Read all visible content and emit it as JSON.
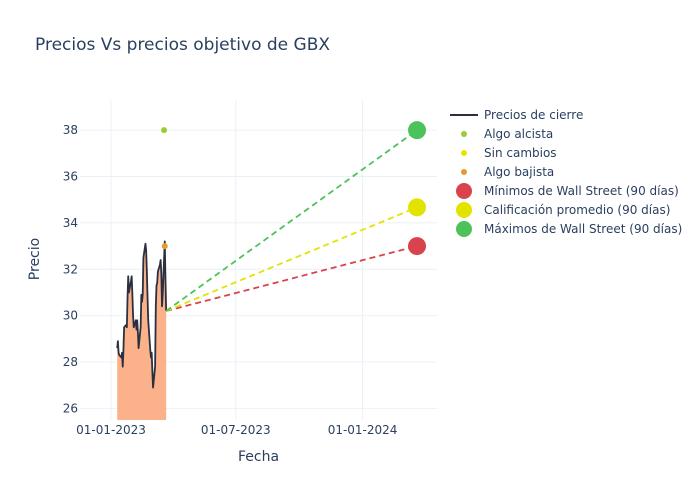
{
  "chart_data": {
    "type": "line",
    "title": "Precios Vs precios objetivo de GBX",
    "xlabel": "Fecha",
    "ylabel": "Precio",
    "xlim": [
      "2022-11-17",
      "2024-04-18"
    ],
    "ylim": [
      25.5,
      39.3
    ],
    "x_ticks": [
      {
        "date": "2023-01-01",
        "label": "01-01-2023"
      },
      {
        "date": "2023-07-01",
        "label": "01-07-2023"
      },
      {
        "date": "2024-01-01",
        "label": "01-01-2024"
      }
    ],
    "y_ticks": [
      26,
      28,
      30,
      32,
      34,
      36,
      38
    ],
    "grid": true,
    "legend_position": "right",
    "close_prices": {
      "name": "Precios de cierre",
      "color": "#2a3040",
      "fill_color": "#fbb28a",
      "points": [
        [
          "2023-01-10",
          28.6
        ],
        [
          "2023-01-11",
          28.9
        ],
        [
          "2023-01-12",
          28.4
        ],
        [
          "2023-01-13",
          28.3
        ],
        [
          "2023-01-16",
          28.2
        ],
        [
          "2023-01-17",
          28.4
        ],
        [
          "2023-01-18",
          27.8
        ],
        [
          "2023-01-19",
          28.5
        ],
        [
          "2023-01-20",
          29.5
        ],
        [
          "2023-01-23",
          29.6
        ],
        [
          "2023-01-24",
          29.5
        ],
        [
          "2023-01-25",
          30.8
        ],
        [
          "2023-01-26",
          31.7
        ],
        [
          "2023-01-27",
          31.0
        ],
        [
          "2023-01-30",
          31.5
        ],
        [
          "2023-01-31",
          31.7
        ],
        [
          "2023-02-01",
          30.9
        ],
        [
          "2023-02-02",
          30.0
        ],
        [
          "2023-02-03",
          29.5
        ],
        [
          "2023-02-06",
          29.8
        ],
        [
          "2023-02-07",
          29.4
        ],
        [
          "2023-02-08",
          29.8
        ],
        [
          "2023-02-09",
          29.3
        ],
        [
          "2023-02-10",
          28.6
        ],
        [
          "2023-02-13",
          29.5
        ],
        [
          "2023-02-14",
          30.9
        ],
        [
          "2023-02-15",
          30.6
        ],
        [
          "2023-02-16",
          30.9
        ],
        [
          "2023-02-17",
          32.5
        ],
        [
          "2023-02-20",
          33.1
        ],
        [
          "2023-02-21",
          32.8
        ],
        [
          "2023-02-22",
          31.9
        ],
        [
          "2023-02-23",
          30.8
        ],
        [
          "2023-02-24",
          29.8
        ],
        [
          "2023-02-27",
          28.5
        ],
        [
          "2023-02-28",
          28.2
        ],
        [
          "2023-03-01",
          28.4
        ],
        [
          "2023-03-02",
          27.6
        ],
        [
          "2023-03-03",
          26.9
        ],
        [
          "2023-03-06",
          27.8
        ],
        [
          "2023-03-07",
          30.4
        ],
        [
          "2023-03-08",
          31.3
        ],
        [
          "2023-03-09",
          31.4
        ],
        [
          "2023-03-10",
          31.9
        ],
        [
          "2023-03-13",
          32.2
        ],
        [
          "2023-03-14",
          32.4
        ],
        [
          "2023-03-15",
          31.8
        ],
        [
          "2023-03-16",
          30.4
        ],
        [
          "2023-03-17",
          30.9
        ],
        [
          "2023-03-20",
          33.2
        ],
        [
          "2023-03-21",
          31.6
        ],
        [
          "2023-03-22",
          30.2
        ]
      ]
    },
    "analyst_ratings": [
      {
        "name": "Algo alcista",
        "color": "#9acd32",
        "date": "2023-03-19",
        "value": 38.0
      },
      {
        "name": "Sin cambios",
        "color": "#e6e600",
        "date": "2023-03-19",
        "value": null
      },
      {
        "name": "Algo bajista",
        "color": "#e69b2a",
        "date": "2023-03-20",
        "value": 33.0
      }
    ],
    "targets": {
      "start": {
        "date": "2023-03-22",
        "value": 30.2
      },
      "end_date": "2024-03-20",
      "series": [
        {
          "name": "Mínimos de Wall Street (90 días)",
          "color": "#d9434b",
          "value": 33.0
        },
        {
          "name": "Calificación promedio (90 días)",
          "color": "#e3e300",
          "value": 34.67
        },
        {
          "name": "Máximos de Wall Street (90 días)",
          "color": "#4cc35a",
          "value": 38.0
        }
      ]
    },
    "legend": [
      {
        "label": "Precios de cierre",
        "kind": "line",
        "color": "#2a3040"
      },
      {
        "label": "Algo alcista",
        "kind": "dot",
        "color": "#9acd32"
      },
      {
        "label": "Sin cambios",
        "kind": "dot",
        "color": "#e6e600"
      },
      {
        "label": "Algo bajista",
        "kind": "dot",
        "color": "#e69b2a"
      },
      {
        "label": "Mínimos de Wall Street (90 días)",
        "kind": "big-dot",
        "color": "#d9434b"
      },
      {
        "label": "Calificación promedio (90 días)",
        "kind": "big-dot",
        "color": "#e3e300"
      },
      {
        "label": "Máximos de Wall Street (90 días)",
        "kind": "big-dot",
        "color": "#4cc35a"
      }
    ]
  }
}
